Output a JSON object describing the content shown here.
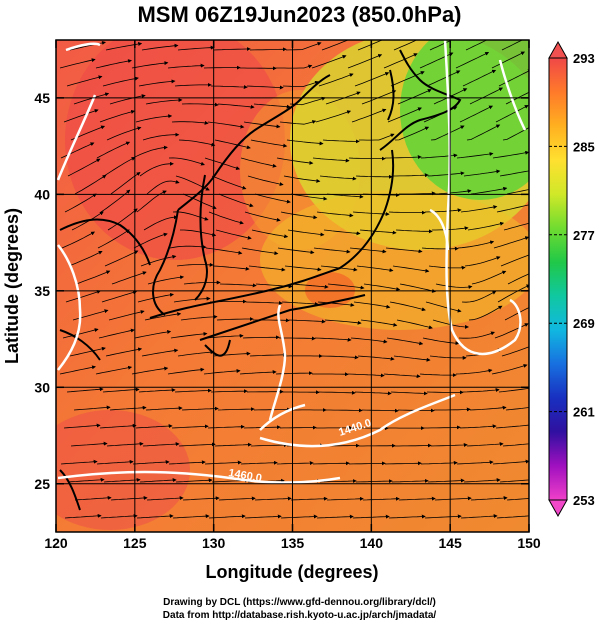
{
  "title": "MSM 06Z19Jun2023 (850.0hPa)",
  "x_axis": {
    "label": "Longitude (degrees)",
    "ticks": [
      "120",
      "125",
      "130",
      "135",
      "140",
      "145",
      "150"
    ],
    "values": [
      120,
      125,
      130,
      135,
      140,
      145,
      150
    ]
  },
  "y_axis": {
    "label": "Latitude  (degrees)",
    "ticks": [
      "25",
      "30",
      "35",
      "40",
      "45"
    ],
    "values": [
      25,
      30,
      35,
      40,
      45
    ]
  },
  "colorbar": {
    "labels": [
      "293",
      "285",
      "277",
      "269",
      "261",
      "253"
    ],
    "values": [
      293,
      285,
      277,
      269,
      261,
      253
    ],
    "colors_top_to_bottom": [
      "#f04848",
      "#ff7a2a",
      "#ffb020",
      "#ffe030",
      "#d0e828",
      "#70dc30",
      "#20c848",
      "#10c8a0",
      "#10b8e0",
      "#1870e0",
      "#1830c0",
      "#3010a0",
      "#a010c0",
      "#f040c8"
    ]
  },
  "contours": [
    {
      "label": "1440.0"
    },
    {
      "label": "1460.0"
    }
  ],
  "credits": {
    "line1": "Drawing by DCL (https://www.gfd-dennou.org/library/dcl/)",
    "line2": "Data from http://database.rish.kyoto-u.ac.jp/arch/jmadata/"
  }
}
